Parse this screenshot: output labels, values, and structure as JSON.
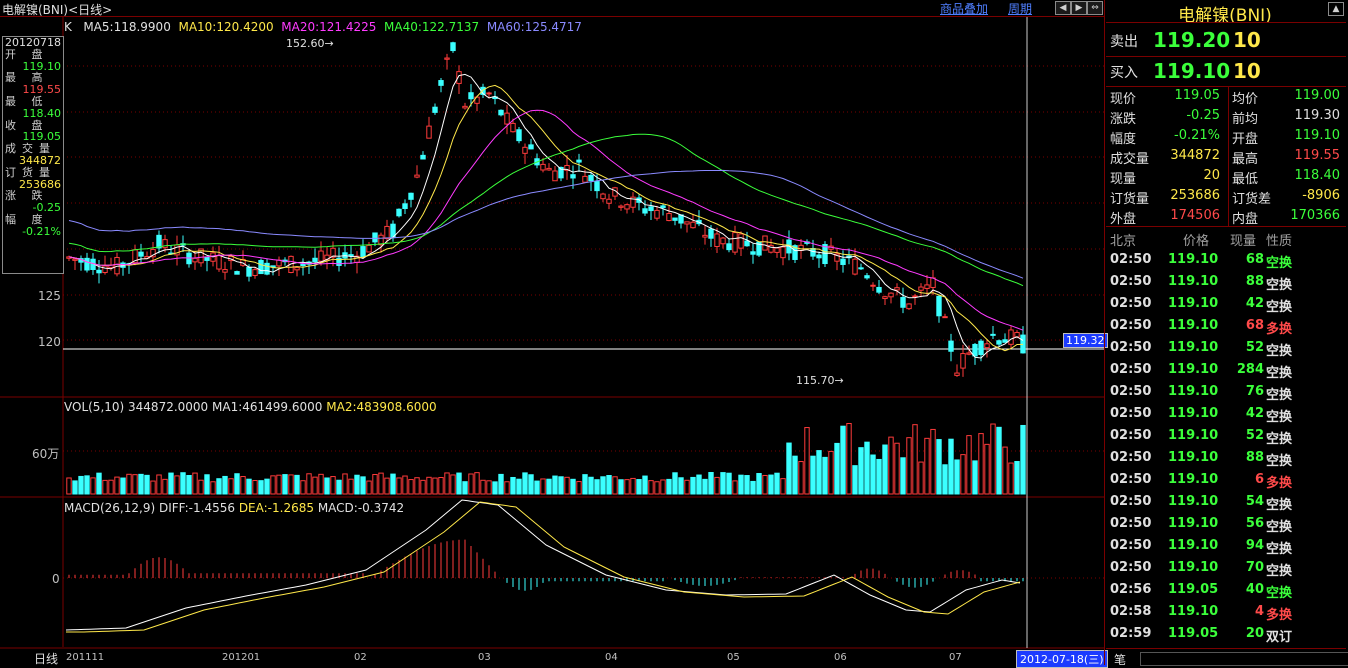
{
  "app": {
    "title": "电解镍(BNI)<日线>",
    "overlay_menu": "商品叠加",
    "period_menu": "周期",
    "date_badge": "2012-07-18(三)",
    "x_axis_label": "日线"
  },
  "legend": {
    "k": "K",
    "ma5": "MA5:118.9900",
    "ma10": "MA10:120.4200",
    "ma20": "MA20:121.4225",
    "ma40": "MA40:122.7137",
    "ma60": "MA60:125.4717",
    "vol": "VOL(5,10) 344872.0000",
    "vol_ma1": "MA1:461499.6000",
    "vol_ma2": "MA2:483908.6000",
    "macd": "MACD(26,12,9)",
    "diff": "DIFF:-1.4556",
    "dea": "DEA:-1.2685",
    "macd_val": "MACD:-0.3742"
  },
  "axis": {
    "y125": "125",
    "y120": "120",
    "vol60": "60万",
    "macd0": "0",
    "high_mark": "152.60→",
    "low_mark": "115.70→",
    "price_badge": "119.32"
  },
  "x_labels": [
    "201111",
    "201201",
    "02",
    "03",
    "04",
    "05",
    "06",
    "07"
  ],
  "info_box": [
    {
      "label": "20120718",
      "value": ""
    },
    {
      "label": "开 盘",
      "value": "119.10",
      "color": "#3bff3b"
    },
    {
      "label": "最 高",
      "value": "119.55",
      "color": "#ff4a4a"
    },
    {
      "label": "最 低",
      "value": "118.40",
      "color": "#3bff3b"
    },
    {
      "label": "收 盘",
      "value": "119.05",
      "color": "#3bff3b"
    },
    {
      "label": "成交量",
      "value": "344872",
      "color": "#ffe84a"
    },
    {
      "label": "订货量",
      "value": "253686",
      "color": "#ffe84a"
    },
    {
      "label": "涨 跌",
      "value": "-0.25",
      "color": "#3bff3b"
    },
    {
      "label": "幅 度",
      "value": "-0.21%",
      "color": "#3bff3b"
    }
  ],
  "panel": {
    "title": "电解镍(BNI)",
    "ask_label": "卖出",
    "ask_price": "119.20",
    "ask_qty": "10",
    "bid_label": "买入",
    "bid_price": "119.10",
    "bid_qty": "10",
    "quotes": [
      {
        "l1": "现价",
        "v1": "119.05",
        "c1": "g",
        "l2": "均价",
        "v2": "119.00",
        "c2": "g"
      },
      {
        "l1": "涨跌",
        "v1": "-0.25",
        "c1": "g",
        "l2": "前均",
        "v2": "119.30",
        "c2": "w"
      },
      {
        "l1": "幅度",
        "v1": "-0.21%",
        "c1": "g",
        "l2": "开盘",
        "v2": "119.10",
        "c2": "g"
      },
      {
        "l1": "成交量",
        "v1": "344872",
        "c1": "y",
        "l2": "最高",
        "v2": "119.55",
        "c2": "r"
      },
      {
        "l1": "现量",
        "v1": "20",
        "c1": "y",
        "l2": "最低",
        "v2": "118.40",
        "c2": "g"
      },
      {
        "l1": "订货量",
        "v1": "253686",
        "c1": "y",
        "l2": "订货差",
        "v2": "-8906",
        "c2": "y"
      },
      {
        "l1": "外盘",
        "v1": "174506",
        "c1": "r",
        "l2": "内盘",
        "v2": "170366",
        "c2": "g"
      }
    ],
    "tick_header": {
      "c1": "北京",
      "c2": "价格",
      "c3": "现量",
      "c4": "性质"
    },
    "ticks": [
      {
        "t": "02:50",
        "p": "119.10",
        "q": "68",
        "n": "空换",
        "c": "g"
      },
      {
        "t": "02:50",
        "p": "119.10",
        "q": "88",
        "n": "空换",
        "c": "w"
      },
      {
        "t": "02:50",
        "p": "119.10",
        "q": "42",
        "n": "空换",
        "c": "w"
      },
      {
        "t": "02:50",
        "p": "119.10",
        "q": "68",
        "n": "多换",
        "c": "r"
      },
      {
        "t": "02:50",
        "p": "119.10",
        "q": "52",
        "n": "空换",
        "c": "w"
      },
      {
        "t": "02:50",
        "p": "119.10",
        "q": "284",
        "n": "空换",
        "c": "w"
      },
      {
        "t": "02:50",
        "p": "119.10",
        "q": "76",
        "n": "空换",
        "c": "w"
      },
      {
        "t": "02:50",
        "p": "119.10",
        "q": "42",
        "n": "空换",
        "c": "w"
      },
      {
        "t": "02:50",
        "p": "119.10",
        "q": "52",
        "n": "空换",
        "c": "w"
      },
      {
        "t": "02:50",
        "p": "119.10",
        "q": "88",
        "n": "空换",
        "c": "w"
      },
      {
        "t": "02:50",
        "p": "119.10",
        "q": "6",
        "n": "多换",
        "c": "r"
      },
      {
        "t": "02:50",
        "p": "119.10",
        "q": "54",
        "n": "空换",
        "c": "w"
      },
      {
        "t": "02:50",
        "p": "119.10",
        "q": "56",
        "n": "空换",
        "c": "w"
      },
      {
        "t": "02:50",
        "p": "119.10",
        "q": "94",
        "n": "空换",
        "c": "w"
      },
      {
        "t": "02:50",
        "p": "119.10",
        "q": "70",
        "n": "空换",
        "c": "w"
      },
      {
        "t": "02:56",
        "p": "119.05",
        "q": "40",
        "n": "空换",
        "c": "g"
      },
      {
        "t": "02:58",
        "p": "119.10",
        "q": "4",
        "n": "多换",
        "c": "r"
      },
      {
        "t": "02:59",
        "p": "119.05",
        "q": "20",
        "n": "双订",
        "c": "w"
      }
    ],
    "bottom_tab": "笔"
  }
}
